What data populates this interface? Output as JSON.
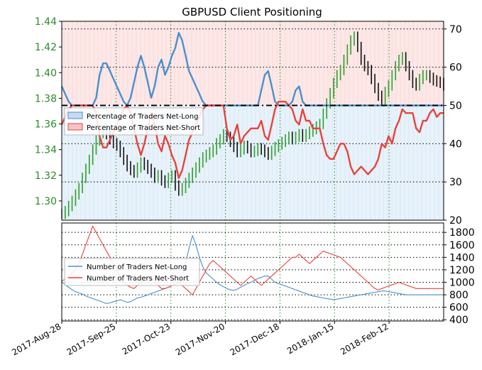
{
  "chart_data": [
    {
      "type": "line",
      "title": "GBPUSD Client Positioning",
      "xlabel": "",
      "ylabel": "",
      "x_ticks": [
        "2017-Aug-28",
        "2017-Sep-25",
        "2017-Oct-23",
        "2017-Nov-20",
        "2017-Dec-18",
        "2018-Jan-15",
        "2018-Feb-12"
      ],
      "left_axis": {
        "ylim": [
          1.285,
          1.44
        ],
        "ticks": [
          "1.30",
          "1.32",
          "1.34",
          "1.36",
          "1.38",
          "1.40",
          "1.42",
          "1.44"
        ],
        "color": "#2c8a2c"
      },
      "right_axis": {
        "ylim": [
          20,
          72
        ],
        "ticks": [
          "20",
          "30",
          "40",
          "50",
          "60",
          "70"
        ]
      },
      "reference_line": 50,
      "grid": true,
      "legend_position": "left-center",
      "series": [
        {
          "name": "Percentage of Traders Net-Long",
          "color": "#4a90cc",
          "axis": "right",
          "values": [
            55,
            53,
            51,
            50,
            50,
            50,
            50,
            50,
            50,
            50,
            52,
            58,
            61,
            61,
            59,
            57,
            55,
            53,
            51,
            50,
            52,
            56,
            60,
            63,
            60,
            56,
            52,
            55,
            60,
            62,
            58,
            60,
            63,
            65,
            69,
            67,
            63,
            59,
            57,
            55,
            53,
            51,
            50,
            50,
            50,
            50,
            50,
            50,
            50,
            50,
            50,
            50,
            50,
            50,
            50,
            50,
            50,
            50,
            54,
            58,
            59,
            55,
            51,
            50,
            50,
            50,
            50,
            51,
            54,
            55,
            51,
            50,
            50,
            50,
            50,
            50,
            50,
            50,
            50,
            50,
            50,
            50,
            50,
            50,
            50,
            50,
            50,
            50,
            50,
            50,
            50,
            50,
            50,
            50,
            50,
            50,
            50,
            50,
            50,
            50,
            50,
            50,
            50,
            50,
            50,
            50,
            50,
            50,
            50,
            50,
            50,
            50
          ]
        },
        {
          "name": "Percentage of Traders Net-Short",
          "color": "#e8433a",
          "axis": "right",
          "values": [
            45,
            47,
            49,
            50,
            50,
            50,
            50,
            50,
            50,
            50,
            48,
            42,
            39,
            39,
            41,
            43,
            45,
            47,
            49,
            50,
            48,
            44,
            40,
            37,
            40,
            44,
            48,
            45,
            40,
            38,
            42,
            40,
            37,
            35,
            31,
            33,
            37,
            41,
            43,
            45,
            47,
            49,
            50,
            50,
            50,
            50,
            50,
            50,
            44,
            41,
            42,
            45,
            40,
            42,
            43,
            44,
            44,
            44,
            46,
            42,
            41,
            45,
            49,
            51,
            51,
            51,
            50,
            49,
            46,
            45,
            49,
            46,
            46,
            44,
            44,
            44,
            40,
            37,
            36,
            36,
            38,
            40,
            40,
            38,
            34,
            32,
            33,
            34,
            33,
            32,
            33,
            34,
            36,
            40,
            39,
            42,
            40,
            44,
            46,
            49,
            48,
            48,
            48,
            44,
            43,
            46,
            46,
            48,
            49,
            47,
            48,
            48
          ]
        },
        {
          "name": "GBPUSD",
          "color": "#111111",
          "axis": "left",
          "values": [
            1.29,
            1.292,
            1.296,
            1.3,
            1.305,
            1.31,
            1.318,
            1.325,
            1.332,
            1.34,
            1.347,
            1.353,
            1.355,
            1.352,
            1.348,
            1.345,
            1.343,
            1.338,
            1.332,
            1.327,
            1.324,
            1.322,
            1.326,
            1.33,
            1.328,
            1.325,
            1.322,
            1.318,
            1.32,
            1.316,
            1.314,
            1.318,
            1.32,
            1.312,
            1.308,
            1.31,
            1.314,
            1.318,
            1.322,
            1.326,
            1.33,
            1.334,
            1.336,
            1.338,
            1.34,
            1.345,
            1.348,
            1.352,
            1.35,
            1.346,
            1.342,
            1.338,
            1.34,
            1.343,
            1.341,
            1.338,
            1.339,
            1.341,
            1.34,
            1.338,
            1.336,
            1.339,
            1.342,
            1.344,
            1.346,
            1.348,
            1.35,
            1.348,
            1.35,
            1.352,
            1.35,
            1.352,
            1.354,
            1.356,
            1.358,
            1.36,
            1.368,
            1.376,
            1.384,
            1.392,
            1.398,
            1.402,
            1.41,
            1.418,
            1.425,
            1.428,
            1.42,
            1.41,
            1.405,
            1.402,
            1.395,
            1.388,
            1.382,
            1.378,
            1.385,
            1.39,
            1.398,
            1.405,
            1.41,
            1.412,
            1.405,
            1.398,
            1.392,
            1.39,
            1.395,
            1.398,
            1.398,
            1.396,
            1.394,
            1.393,
            1.392,
            1.39
          ]
        }
      ]
    },
    {
      "type": "line",
      "title": "",
      "xlabel": "",
      "ylabel": "",
      "right_axis": {
        "ylim": [
          380,
          1950
        ],
        "ticks": [
          "400",
          "600",
          "800",
          "1000",
          "1200",
          "1400",
          "1600",
          "1800"
        ]
      },
      "grid": true,
      "legend_position": "left-center",
      "series": [
        {
          "name": "Number of Traders Net-Long",
          "color": "#4a90cc",
          "values": [
            1010,
            960,
            920,
            880,
            850,
            830,
            810,
            780,
            760,
            740,
            720,
            700,
            680,
            660,
            670,
            690,
            700,
            720,
            700,
            680,
            690,
            720,
            750,
            760,
            780,
            800,
            820,
            840,
            860,
            880,
            900,
            920,
            950,
            980,
            1000,
            1100,
            1300,
            1550,
            1750,
            1600,
            1400,
            1250,
            1150,
            1100,
            1050,
            1000,
            960,
            930,
            900,
            880,
            870,
            890,
            920,
            950,
            980,
            1000,
            1030,
            1060,
            1080,
            1100,
            1100,
            1050,
            1000,
            980,
            960,
            940,
            920,
            900,
            880,
            860,
            840,
            820,
            800,
            780,
            770,
            760,
            750,
            740,
            730,
            720,
            730,
            740,
            750,
            760,
            770,
            780,
            790,
            800,
            810,
            820,
            830,
            840,
            850,
            860,
            860,
            850,
            840,
            830,
            820,
            810,
            800,
            800,
            800,
            800,
            800,
            800,
            800,
            800,
            800,
            800,
            800,
            800
          ]
        },
        {
          "name": "Number of Traders Net-Short",
          "color": "#e8433a",
          "values": [
            1020,
            1050,
            1100,
            1150,
            1200,
            1300,
            1450,
            1600,
            1750,
            1900,
            1800,
            1700,
            1600,
            1500,
            1400,
            1300,
            1200,
            1100,
            1000,
            950,
            920,
            900,
            950,
            1000,
            1050,
            1100,
            1050,
            1000,
            950,
            900,
            900,
            920,
            950,
            980,
            1000,
            950,
            900,
            850,
            800,
            900,
            1000,
            1100,
            1200,
            1300,
            1350,
            1300,
            1250,
            1200,
            1150,
            1100,
            1050,
            1000,
            950,
            1000,
            1050,
            1100,
            1050,
            1000,
            950,
            1000,
            1050,
            1100,
            1150,
            1200,
            1250,
            1300,
            1350,
            1400,
            1400,
            1450,
            1400,
            1350,
            1300,
            1350,
            1400,
            1450,
            1500,
            1480,
            1460,
            1440,
            1420,
            1400,
            1350,
            1300,
            1250,
            1200,
            1150,
            1100,
            1050,
            1000,
            950,
            900,
            880,
            900,
            920,
            940,
            960,
            980,
            1000,
            980,
            960,
            940,
            920,
            900,
            900,
            900,
            900,
            900,
            900,
            900,
            900,
            900
          ]
        }
      ]
    }
  ]
}
